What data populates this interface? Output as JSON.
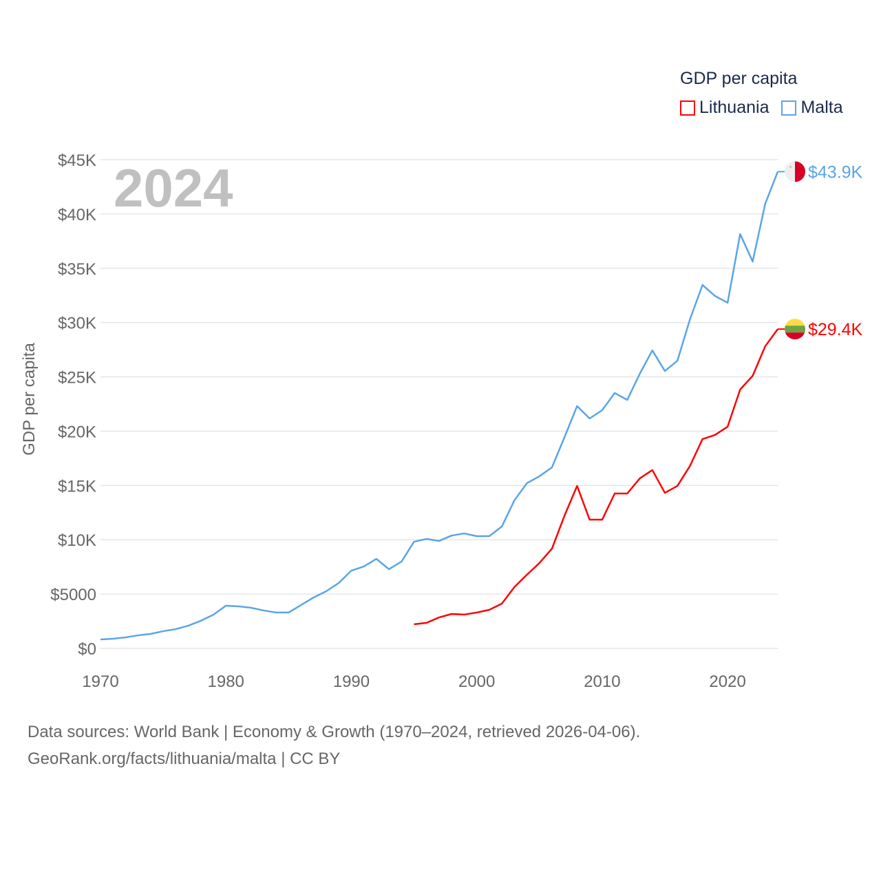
{
  "legend": {
    "title": "GDP per capita",
    "items": [
      {
        "label": "Lithuania",
        "color": "#ff0000"
      },
      {
        "label": "Malta",
        "color": "#5aa4e8"
      }
    ]
  },
  "year_label": "2024",
  "footer": {
    "line1": "Data sources: World Bank | Economy & Growth (1970–2024, retrieved 2026-04-06).",
    "line2": "GeoRank.org/facts/lithuania/malta | CC BY"
  },
  "chart_data": {
    "type": "line",
    "title": "GDP per capita",
    "xlabel": "",
    "ylabel": "GDP per capita",
    "xlim": [
      1970,
      2024
    ],
    "ylim": [
      0,
      45000
    ],
    "grid": true,
    "legend_placement": "top-right",
    "x_ticks": [
      "1970",
      "1980",
      "1990",
      "2000",
      "2010",
      "2020"
    ],
    "y_ticks": [
      {
        "value": 0,
        "label": "$0"
      },
      {
        "value": 5000,
        "label": "$5000"
      },
      {
        "value": 10000,
        "label": "$10K"
      },
      {
        "value": 15000,
        "label": "$15K"
      },
      {
        "value": 20000,
        "label": "$20K"
      },
      {
        "value": 25000,
        "label": "$25K"
      },
      {
        "value": 30000,
        "label": "$30K"
      },
      {
        "value": 35000,
        "label": "$35K"
      },
      {
        "value": 40000,
        "label": "$40K"
      },
      {
        "value": 45000,
        "label": "$45K"
      }
    ],
    "series": [
      {
        "name": "Malta",
        "color": "#5aa4e8",
        "end_label": "$43.9K",
        "flag": "malta-flag",
        "start_year": 1970,
        "values": [
          820,
          890,
          1010,
          1200,
          1330,
          1580,
          1770,
          2090,
          2540,
          3100,
          3930,
          3870,
          3740,
          3490,
          3300,
          3300,
          4000,
          4690,
          5260,
          6020,
          7160,
          7540,
          8240,
          7290,
          7990,
          9820,
          10080,
          9890,
          10390,
          10580,
          10330,
          10330,
          11220,
          13630,
          15210,
          15850,
          16670,
          19460,
          22310,
          21170,
          21930,
          23520,
          22880,
          25290,
          27440,
          25540,
          26490,
          30300,
          33460,
          32450,
          31820,
          38150,
          35620,
          40940,
          43900
        ]
      },
      {
        "name": "Lithuania",
        "color": "#ff0000",
        "end_label": "$29.4K",
        "flag": "lithuania-flag",
        "start_year": 1995,
        "values": [
          2220,
          2350,
          2850,
          3170,
          3110,
          3300,
          3550,
          4120,
          5640,
          6780,
          7860,
          9190,
          12230,
          14960,
          11850,
          11850,
          14260,
          14260,
          15650,
          16420,
          14320,
          14960,
          16800,
          19270,
          19650,
          20410,
          23830,
          25100,
          27820,
          29400
        ]
      }
    ]
  }
}
